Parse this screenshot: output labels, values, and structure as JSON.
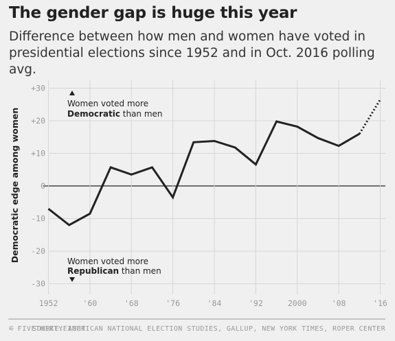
{
  "header": {
    "title": "The gender gap is huge this year",
    "subtitle": "Difference between how men and women have voted in presidential elections since 1952 and in Oct. 2016 polling avg."
  },
  "footer": {
    "brand": "FIVETHIRTYEIGHT",
    "source": "SOURCE: AMERICAN NATIONAL ELECTION STUDIES, GALLUP, NEW YORK TIMES, ROPER CENTER"
  },
  "colors": {
    "background": "#f0f0f0",
    "line": "#222222",
    "grid": "#d6d6d6",
    "tick_text": "#999999"
  },
  "chart_data": {
    "type": "line",
    "ylabel": "Democratic edge among women",
    "ylim": [
      -32,
      32
    ],
    "xlim": [
      1951,
      2017
    ],
    "grid": true,
    "yticks": [
      {
        "value": 30,
        "label": "+30"
      },
      {
        "value": 20,
        "label": "+20"
      },
      {
        "value": 10,
        "label": "+10"
      },
      {
        "value": 0,
        "label": "0"
      },
      {
        "value": -10,
        "label": "-10"
      },
      {
        "value": -20,
        "label": "-20"
      },
      {
        "value": -30,
        "label": "-30"
      }
    ],
    "xticks": [
      {
        "value": 1952,
        "label": "1952"
      },
      {
        "value": 1960,
        "label": "'60"
      },
      {
        "value": 1968,
        "label": "'68"
      },
      {
        "value": 1976,
        "label": "'76"
      },
      {
        "value": 1984,
        "label": "'84"
      },
      {
        "value": 1992,
        "label": "'92"
      },
      {
        "value": 2000,
        "label": "2000"
      },
      {
        "value": 2008,
        "label": "'08"
      },
      {
        "value": 2016,
        "label": "'16"
      }
    ],
    "series": [
      {
        "style": "solid",
        "x": [
          1952,
          1956,
          1960,
          1964,
          1968,
          1972,
          1976,
          1980,
          1984,
          1988,
          1992,
          1996,
          2000,
          2004,
          2008,
          2012
        ],
        "y": [
          -7,
          -12,
          -8.5,
          5.7,
          3.5,
          5.7,
          -3.5,
          13.4,
          13.8,
          11.8,
          6.6,
          19.8,
          18.2,
          14.7,
          12.3,
          16
        ]
      },
      {
        "style": "dotted",
        "x": [
          2012,
          2016
        ],
        "y": [
          16,
          26.5
        ]
      }
    ],
    "annotations": [
      {
        "line1": "Women voted more",
        "bold": "Democratic",
        "rest": " than men",
        "arrow": "up"
      },
      {
        "line1": "Women voted more",
        "bold": "Republican",
        "rest": " than men",
        "arrow": "down"
      }
    ]
  }
}
